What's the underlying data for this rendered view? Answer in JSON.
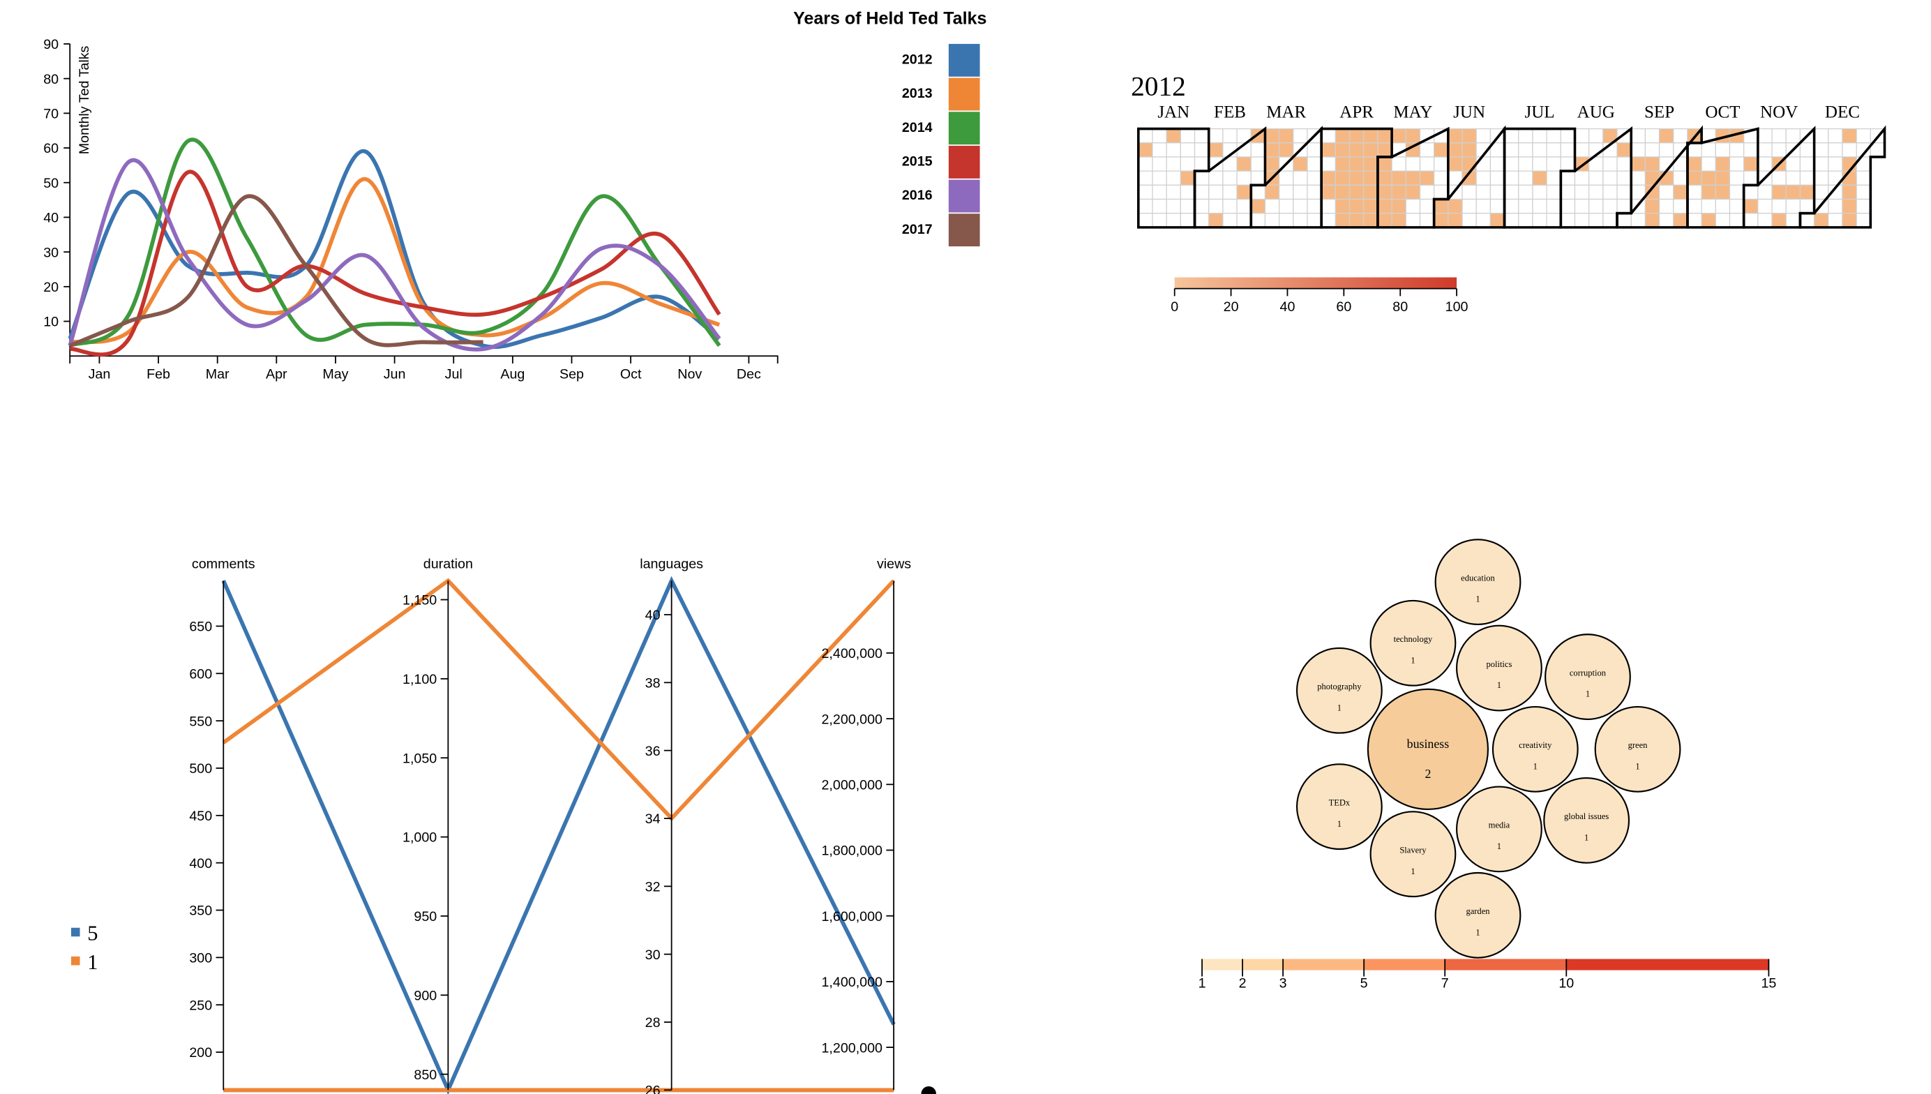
{
  "chart_data": [
    {
      "type": "line",
      "title": "Years of Held Ted Talks",
      "ylabel": "Monthly Ted Talks",
      "xlabel": "",
      "categories": [
        "Jan",
        "Feb",
        "Mar",
        "Apr",
        "May",
        "Jun",
        "Jul",
        "Aug",
        "Sep",
        "Oct",
        "Nov",
        "Dec"
      ],
      "ylim": [
        0,
        90
      ],
      "yticks": [
        10,
        20,
        30,
        40,
        50,
        60,
        70,
        80,
        90
      ],
      "legend_position": "top-right",
      "series": [
        {
          "name": "2012",
          "color": "#3a75b0",
          "points": [
            [
              -0.5,
              5
            ],
            [
              0.5,
              47
            ],
            [
              1.5,
              26
            ],
            [
              2.5,
              24
            ],
            [
              3.5,
              26
            ],
            [
              4.5,
              59
            ],
            [
              5.5,
              15
            ],
            [
              6.5,
              3
            ],
            [
              7.5,
              6
            ],
            [
              8.5,
              11
            ],
            [
              9.5,
              17
            ],
            [
              10.5,
              5
            ]
          ]
        },
        {
          "name": "2013",
          "color": "#ef8636",
          "points": [
            [
              -0.5,
              4
            ],
            [
              0.5,
              7
            ],
            [
              1.5,
              30
            ],
            [
              2.5,
              14
            ],
            [
              3.5,
              17
            ],
            [
              4.5,
              51
            ],
            [
              5.5,
              14
            ],
            [
              6.5,
              6
            ],
            [
              7.5,
              11
            ],
            [
              8.5,
              21
            ],
            [
              9.5,
              15
            ],
            [
              10.5,
              9
            ]
          ]
        },
        {
          "name": "2014",
          "color": "#3d9a3d",
          "points": [
            [
              -0.5,
              3
            ],
            [
              0.5,
              12
            ],
            [
              1.5,
              62
            ],
            [
              2.5,
              34
            ],
            [
              3.5,
              6
            ],
            [
              4.5,
              9
            ],
            [
              5.5,
              9
            ],
            [
              6.5,
              7
            ],
            [
              7.5,
              18
            ],
            [
              8.5,
              46
            ],
            [
              9.5,
              26
            ],
            [
              10.5,
              3
            ]
          ]
        },
        {
          "name": "2015",
          "color": "#c5342d",
          "points": [
            [
              -0.5,
              2
            ],
            [
              0.5,
              5
            ],
            [
              1.5,
              53
            ],
            [
              2.5,
              20
            ],
            [
              3.5,
              26
            ],
            [
              4.5,
              18
            ],
            [
              5.5,
              14
            ],
            [
              6.5,
              12
            ],
            [
              7.5,
              17
            ],
            [
              8.5,
              25
            ],
            [
              9.5,
              35
            ],
            [
              10.5,
              12
            ]
          ]
        },
        {
          "name": "2016",
          "color": "#8e6abe",
          "points": [
            [
              -0.5,
              3
            ],
            [
              0.5,
              56
            ],
            [
              1.5,
              28
            ],
            [
              2.5,
              9
            ],
            [
              3.5,
              16
            ],
            [
              4.5,
              29
            ],
            [
              5.5,
              8
            ],
            [
              6.5,
              2
            ],
            [
              7.5,
              12
            ],
            [
              8.5,
              31
            ],
            [
              9.5,
              26
            ],
            [
              10.5,
              5
            ]
          ]
        },
        {
          "name": "2017",
          "color": "#86574b",
          "points": [
            [
              -0.5,
              3
            ],
            [
              0.5,
              10
            ],
            [
              1.5,
              17
            ],
            [
              2.5,
              46
            ],
            [
              3.5,
              26
            ],
            [
              4.5,
              5
            ],
            [
              5.5,
              4
            ],
            [
              6.5,
              4
            ]
          ]
        }
      ]
    },
    {
      "type": "heatmap",
      "title": "2012",
      "months": [
        "JAN",
        "FEB",
        "MAR",
        "APR",
        "MAY",
        "JUN",
        "JUL",
        "AUG",
        "SEP",
        "OCT",
        "NOV",
        "DEC"
      ],
      "colorbar": {
        "ticks": [
          0,
          20,
          40,
          60,
          80,
          100
        ]
      },
      "days_with_talks": [
        1,
        14,
        24,
        36,
        41,
        51,
        53,
        56,
        61,
        63,
        64,
        65,
        66,
        67,
        70,
        71,
        79,
        92,
        94,
        95,
        98,
        99,
        100,
        101,
        102,
        103,
        104,
        105,
        106,
        107,
        108,
        109,
        110,
        111,
        112,
        113,
        114,
        115,
        116,
        117,
        118,
        119,
        120,
        121,
        122,
        123,
        124,
        125,
        126,
        129,
        130,
        131,
        132,
        133,
        134,
        136,
        137,
        143,
        148,
        152,
        153,
        154,
        155,
        156,
        159,
        160,
        161,
        162,
        163,
        164,
        181,
        199,
        219,
        231,
        239,
        247,
        254,
        255,
        256,
        257,
        258,
        259,
        262,
        270,
        272,
        273,
        275,
        276,
        283,
        284,
        286,
        287,
        289,
        290,
        291,
        294,
        303,
        306,
        317,
        319,
        321,
        326,
        333,
        342,
        350,
        352,
        353,
        354,
        355,
        356
      ]
    },
    {
      "type": "parallel-coordinates",
      "axes": [
        {
          "name": "comments",
          "range": [
            160,
            698
          ],
          "ticks": [
            200,
            250,
            300,
            350,
            400,
            450,
            500,
            550,
            600,
            650
          ]
        },
        {
          "name": "duration",
          "range": [
            840,
            1162
          ],
          "ticks": [
            850,
            900,
            950,
            1000,
            1050,
            1100,
            1150
          ]
        },
        {
          "name": "languages",
          "range": [
            26,
            41
          ],
          "ticks": [
            26,
            28,
            30,
            32,
            34,
            36,
            38,
            40
          ]
        },
        {
          "name": "views",
          "range": [
            1070000,
            2620000
          ],
          "ticks": [
            1200000,
            1400000,
            1600000,
            1800000,
            2000000,
            2200000,
            2400000
          ]
        }
      ],
      "legend": [
        {
          "name": "5",
          "color": "#3a75b0"
        },
        {
          "name": "1",
          "color": "#ef8636"
        }
      ],
      "series": [
        {
          "name": "5",
          "color": "#3a75b0",
          "values": [
            698,
            840,
            41,
            1270000
          ]
        },
        {
          "name": "5",
          "color": "#3a75b0",
          "values": [
            160,
            840,
            26,
            1070000
          ]
        },
        {
          "name": "1",
          "color": "#ef8636",
          "values": [
            527,
            1162,
            34,
            2620000
          ]
        },
        {
          "name": "1",
          "color": "#ef8636",
          "values": [
            160,
            840,
            26,
            1070000
          ]
        }
      ]
    },
    {
      "type": "bubble",
      "bubbles": [
        {
          "label": "education",
          "value": 1
        },
        {
          "label": "technology",
          "value": 1
        },
        {
          "label": "politics",
          "value": 1
        },
        {
          "label": "corruption",
          "value": 1
        },
        {
          "label": "photography",
          "value": 1
        },
        {
          "label": "business",
          "value": 2
        },
        {
          "label": "creativity",
          "value": 1
        },
        {
          "label": "green",
          "value": 1
        },
        {
          "label": "TEDx",
          "value": 1
        },
        {
          "label": "media",
          "value": 1
        },
        {
          "label": "global issues",
          "value": 1
        },
        {
          "label": "Slavery",
          "value": 1
        },
        {
          "label": "garden",
          "value": 1
        }
      ],
      "colorbar": {
        "ticks": [
          1,
          2,
          3,
          5,
          7,
          10,
          15
        ]
      }
    }
  ]
}
